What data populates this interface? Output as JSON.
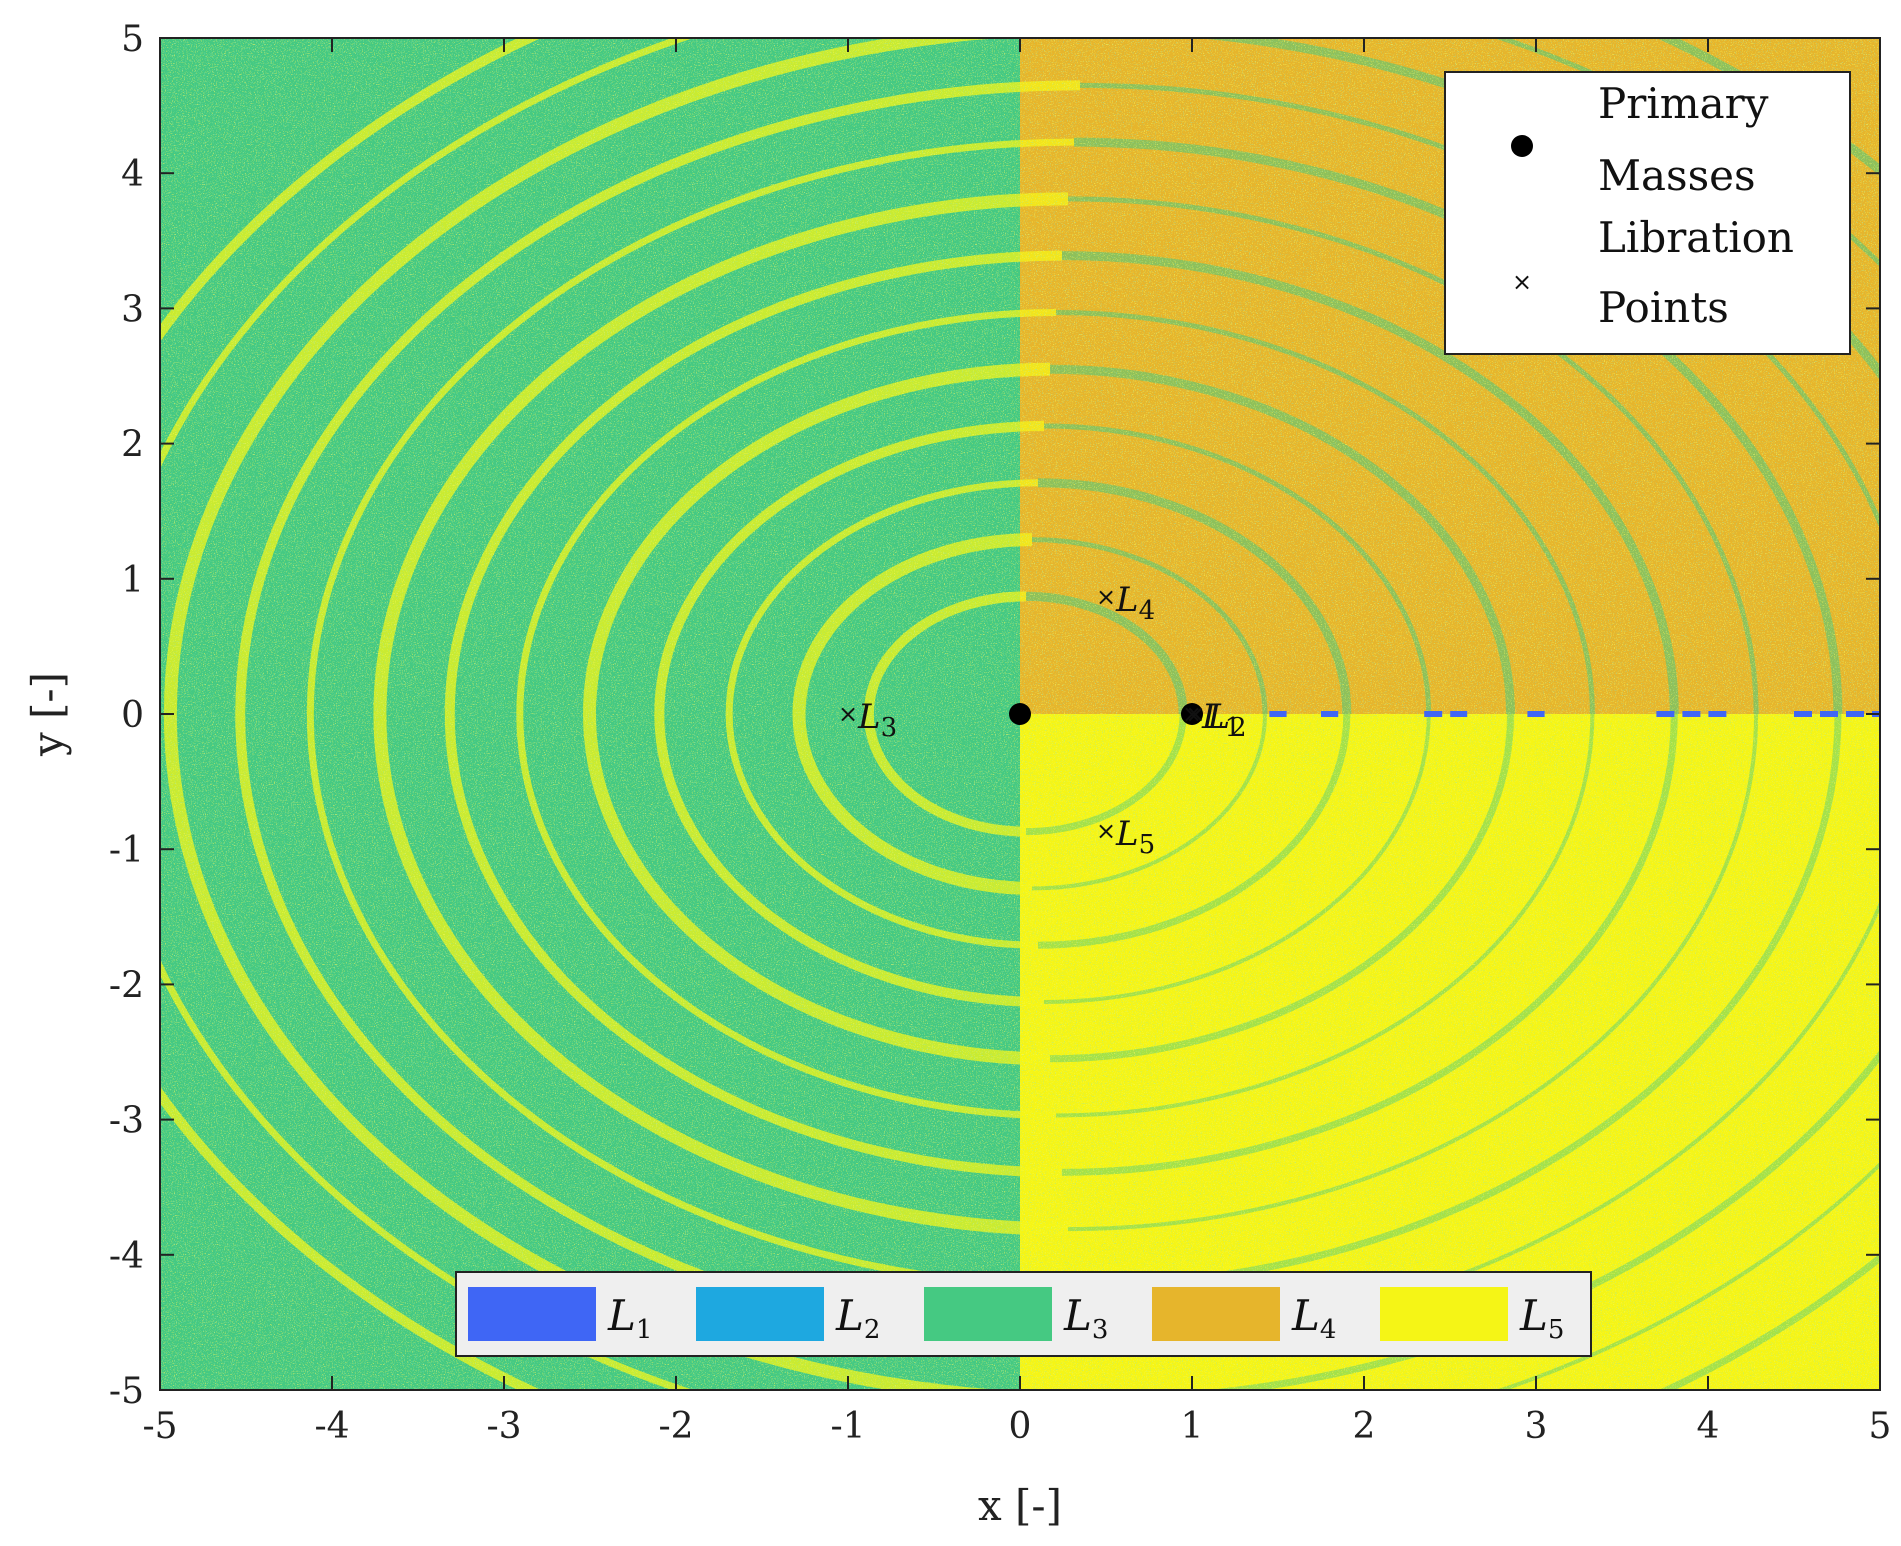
{
  "chart_data": {
    "type": "heatmap",
    "title": "",
    "xlabel": "x [-]",
    "ylabel": "y [-]",
    "xlim": [
      -5,
      5
    ],
    "ylim": [
      -5,
      5
    ],
    "x_ticks": [
      "-5",
      "-4",
      "-3",
      "-2",
      "-1",
      "0",
      "1",
      "2",
      "3",
      "4",
      "5"
    ],
    "y_ticks": [
      "5",
      "4",
      "3",
      "2",
      "1",
      "0",
      "-1",
      "-2",
      "-3",
      "-4",
      "-5"
    ],
    "regions_colors": {
      "L1": "#3f66f5",
      "L2": "#1ea8e0",
      "L3": "#45c982",
      "L4": "#e6b52c",
      "L5": "#f5f516"
    },
    "primary_masses": [
      {
        "x": 0.0,
        "y": 0.0
      },
      {
        "x": 1.0,
        "y": 0.0
      }
    ],
    "libration_points": [
      {
        "name": "L1",
        "label": "L",
        "sub": "1",
        "x": 1.0,
        "y": 0.0
      },
      {
        "name": "L2",
        "label": "L",
        "sub": "2",
        "x": 1.02,
        "y": 0.0
      },
      {
        "name": "L3",
        "label": "L",
        "sub": "3",
        "x": -1.0,
        "y": 0.0
      },
      {
        "name": "L4",
        "label": "L",
        "sub": "4",
        "x": 0.5,
        "y": 0.866
      },
      {
        "name": "L5",
        "label": "L",
        "sub": "5",
        "x": 0.5,
        "y": -0.866
      }
    ],
    "legend": {
      "placement": "top-right",
      "entries": [
        {
          "marker": "filled-circle",
          "line1": "Primary",
          "line2": "Masses"
        },
        {
          "marker": "cross",
          "line1": "Libration",
          "line2": "Points"
        }
      ]
    },
    "colorbar": {
      "placement": "bottom-center",
      "entries": [
        {
          "label": "L",
          "sub": "1",
          "color": "#3f66f5"
        },
        {
          "label": "L",
          "sub": "2",
          "color": "#1ea8e0"
        },
        {
          "label": "L",
          "sub": "3",
          "color": "#45c982"
        },
        {
          "label": "L",
          "sub": "4",
          "color": "#e6b52c"
        },
        {
          "label": "L",
          "sub": "5",
          "color": "#f5f516"
        }
      ]
    }
  }
}
